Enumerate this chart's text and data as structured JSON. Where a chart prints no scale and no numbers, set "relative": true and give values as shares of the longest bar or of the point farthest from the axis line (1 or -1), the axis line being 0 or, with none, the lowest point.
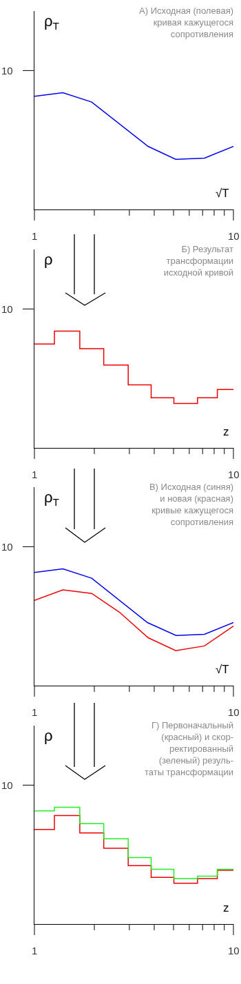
{
  "chart_data": [
    {
      "type": "line",
      "title": "А) Исходная (полевая)\nкривая кажущегося\nсопротивления",
      "xlabel": "√T",
      "ylabel": "ρ$_{T}$",
      "log": "x",
      "relative": true,
      "annotations": [
        "10"
      ],
      "x": [
        1,
        1.39,
        1.94,
        3.73,
        5.13,
        7.15,
        10
      ],
      "series": [
        {
          "color": "#0000ee",
          "values": [
            0.97,
            1,
            0.92,
            0.54,
            0.43,
            0.44,
            0.54
          ]
        }
      ],
      "xlim": [
        1,
        10
      ],
      "xticks": [
        {
          "value": 1,
          "label": "1"
        },
        {
          "value": 2,
          "label": null
        },
        {
          "value": 3,
          "label": null
        },
        {
          "value": 4,
          "label": null
        },
        {
          "value": 5,
          "label": null
        },
        {
          "value": 6,
          "label": null
        },
        {
          "value": 7,
          "label": null
        },
        {
          "value": 8,
          "label": null
        },
        {
          "value": 9,
          "label": null
        },
        {
          "value": 10,
          "label": "10"
        }
      ]
    },
    {
      "type": "step",
      "title": "Б) Результат\nтрансформации\nисходной кривой",
      "xlabel": "z",
      "ylabel": "ρ",
      "log": "x",
      "relative": true,
      "annotations": [
        "10"
      ],
      "x": [
        1,
        1.26,
        1.69,
        2.23,
        2.96,
        3.86,
        5.02,
        6.6,
        8.3,
        10
      ],
      "series": [
        {
          "color": "#ee0000",
          "values": [
            0.89,
            1,
            0.85,
            0.71,
            0.54,
            0.43,
            0.38,
            0.43,
            0.5,
            0.5
          ]
        }
      ],
      "xlim": [
        1,
        10
      ],
      "xticks": [
        {
          "value": 1,
          "label": "1"
        },
        {
          "value": 2,
          "label": null
        },
        {
          "value": 3,
          "label": null
        },
        {
          "value": 4,
          "label": null
        },
        {
          "value": 5,
          "label": null
        },
        {
          "value": 6,
          "label": null
        },
        {
          "value": 7,
          "label": null
        },
        {
          "value": 8,
          "label": null
        },
        {
          "value": 9,
          "label": null
        },
        {
          "value": 10,
          "label": "10"
        }
      ]
    },
    {
      "type": "line",
      "title": "В) Исходная (синяя)\nи новая (красная)\nкривые кажущегося\nсопротивления",
      "xlabel": "√T",
      "ylabel": "ρ$_{T}$",
      "log": "x",
      "relative": true,
      "annotations": [
        "10"
      ],
      "series": [
        {
          "color": "#0000ee",
          "x": [
            1,
            1.39,
            1.94,
            3.7,
            5.15,
            7.15,
            10
          ],
          "values": [
            0.97,
            1,
            0.92,
            0.54,
            0.43,
            0.44,
            0.54
          ]
        },
        {
          "color": "#ee0000",
          "x": [
            1,
            1.39,
            1.94,
            2.67,
            3.73,
            5.13,
            7.15,
            10
          ],
          "values": [
            0.73,
            0.82,
            0.79,
            0.63,
            0.41,
            0.3,
            0.34,
            0.51
          ]
        }
      ],
      "xlim": [
        1,
        10
      ],
      "xticks": [
        {
          "value": 1,
          "label": "1"
        },
        {
          "value": 2,
          "label": null
        },
        {
          "value": 3,
          "label": null
        },
        {
          "value": 4,
          "label": null
        },
        {
          "value": 5,
          "label": null
        },
        {
          "value": 6,
          "label": null
        },
        {
          "value": 7,
          "label": null
        },
        {
          "value": 8,
          "label": null
        },
        {
          "value": 9,
          "label": null
        },
        {
          "value": 10,
          "label": "10"
        }
      ]
    },
    {
      "type": "step",
      "title": "Г) Первоначальный\n(красный) и скор-\nректированный\n(зеленый) резуль-\nтаты трансформации",
      "xlabel": "z",
      "ylabel": "ρ",
      "log": "x",
      "relative": true,
      "annotations": [
        "10"
      ],
      "x": [
        1,
        1.26,
        1.69,
        2.23,
        2.96,
        3.86,
        5.02,
        6.6,
        8.3,
        10
      ],
      "series": [
        {
          "color": "#ee0000",
          "values": [
            0.81,
            0.93,
            0.78,
            0.65,
            0.5,
            0.4,
            0.35,
            0.39,
            0.46,
            0.46
          ]
        },
        {
          "color": "#22ee22",
          "values": [
            0.97,
            1,
            0.86,
            0.73,
            0.57,
            0.47,
            0.39,
            0.41,
            0.47,
            0.47
          ]
        }
      ],
      "xlim": [
        1,
        10
      ],
      "xticks": [
        {
          "value": 1,
          "label": "1"
        },
        {
          "value": 2,
          "label": null
        },
        {
          "value": 3,
          "label": null
        },
        {
          "value": 4,
          "label": null
        },
        {
          "value": 5,
          "label": null
        },
        {
          "value": 6,
          "label": null
        },
        {
          "value": 7,
          "label": null
        },
        {
          "value": 8,
          "label": null
        },
        {
          "value": 9,
          "label": null
        },
        {
          "value": 10,
          "label": "10"
        }
      ]
    }
  ]
}
